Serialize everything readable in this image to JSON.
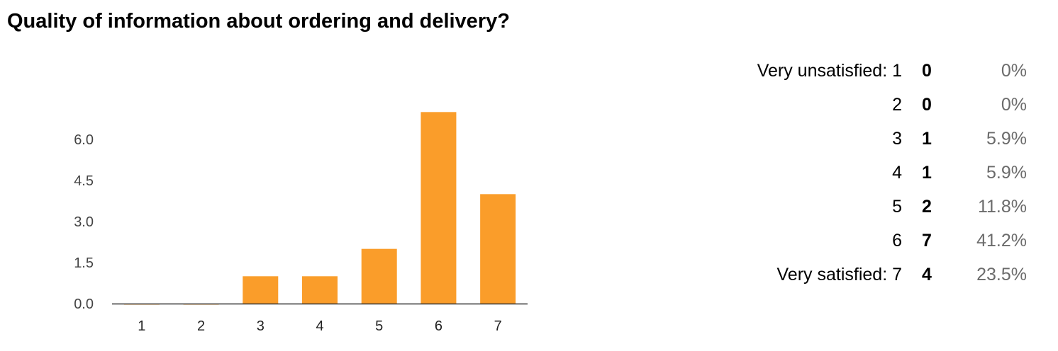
{
  "title": "Quality of information about ordering and delivery?",
  "colors": {
    "bar": "#fa9d2a",
    "axis": "#333333",
    "tick_text": "#444444",
    "pct_text": "#6b6b6b"
  },
  "chart_data": {
    "type": "bar",
    "categories": [
      "1",
      "2",
      "3",
      "4",
      "5",
      "6",
      "7"
    ],
    "values": [
      0,
      0,
      1,
      1,
      2,
      7,
      4
    ],
    "ylim": [
      0,
      7
    ],
    "yticks": [
      "0.0",
      "1.5",
      "3.0",
      "4.5",
      "6.0"
    ],
    "ytick_values": [
      0,
      1.5,
      3,
      4.5,
      6
    ],
    "grid": false,
    "xlabel": "",
    "ylabel": ""
  },
  "summary": [
    {
      "label": "Very unsatisfied: 1",
      "count": "0",
      "pct": "0%"
    },
    {
      "label": "2",
      "count": "0",
      "pct": "0%"
    },
    {
      "label": "3",
      "count": "1",
      "pct": "5.9%"
    },
    {
      "label": "4",
      "count": "1",
      "pct": "5.9%"
    },
    {
      "label": "5",
      "count": "2",
      "pct": "11.8%"
    },
    {
      "label": "6",
      "count": "7",
      "pct": "41.2%"
    },
    {
      "label": "Very satisfied: 7",
      "count": "4",
      "pct": "23.5%"
    }
  ]
}
